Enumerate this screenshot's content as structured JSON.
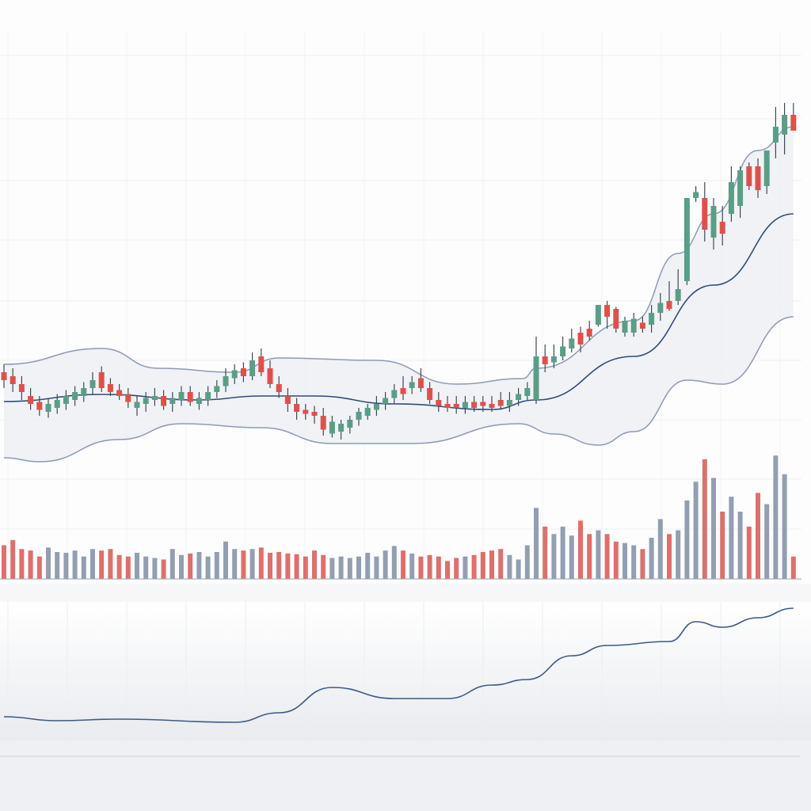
{
  "chart_data": [
    {
      "type": "candlestick",
      "title": "",
      "xlabel": "",
      "ylabel": "",
      "ylim": [
        0,
        100
      ],
      "grid": true,
      "colors": {
        "up": "#5a9e86",
        "down": "#e0504a",
        "band_line": "#8b9ab5",
        "middle_line": "#2f4d78",
        "band_fill": "#eef0f4"
      },
      "candles": [
        [
          26,
          28,
          22,
          24
        ],
        [
          25,
          27,
          21,
          23
        ],
        [
          23,
          25,
          19,
          21
        ],
        [
          20,
          22,
          16.5,
          18
        ],
        [
          18.5,
          20,
          15,
          16.5
        ],
        [
          16,
          19.5,
          14.5,
          18
        ],
        [
          17,
          20.5,
          15.5,
          19
        ],
        [
          18,
          21.5,
          16.5,
          20
        ],
        [
          19,
          22.5,
          17.5,
          21
        ],
        [
          20,
          23.5,
          18.5,
          22
        ],
        [
          22,
          26,
          20.5,
          24
        ],
        [
          26,
          27.5,
          21,
          22
        ],
        [
          23,
          24.5,
          20,
          21
        ],
        [
          21.5,
          23,
          19,
          20
        ],
        [
          20.5,
          22,
          17,
          18.5
        ],
        [
          17,
          20,
          15,
          18.5
        ],
        [
          18,
          21,
          16,
          19.5
        ],
        [
          19,
          22,
          17.5,
          20
        ],
        [
          20,
          21.5,
          16.5,
          17.5
        ],
        [
          18,
          21,
          16,
          19.5
        ],
        [
          19,
          22.5,
          17.5,
          21
        ],
        [
          21,
          22.5,
          17.5,
          18.5
        ],
        [
          18,
          21,
          16.5,
          19.5
        ],
        [
          19,
          22.5,
          17.5,
          21
        ],
        [
          21,
          24,
          19.5,
          22.5
        ],
        [
          22.5,
          27,
          21,
          25
        ],
        [
          24.5,
          28,
          23,
          26.5
        ],
        [
          27,
          28.5,
          23.5,
          25
        ],
        [
          25,
          31,
          24,
          29
        ],
        [
          30,
          32,
          25,
          26
        ],
        [
          27,
          29,
          22,
          23
        ],
        [
          23,
          25,
          19.5,
          21
        ],
        [
          20,
          22,
          16,
          18
        ],
        [
          18,
          19.5,
          14,
          16
        ],
        [
          16.5,
          18,
          14,
          15.5
        ],
        [
          16,
          17.5,
          13,
          15
        ],
        [
          15,
          17,
          10,
          11.5
        ],
        [
          10.5,
          15,
          9.5,
          13.5
        ],
        [
          11,
          14,
          9,
          13
        ],
        [
          12,
          15,
          10.5,
          14
        ],
        [
          14,
          17,
          12.5,
          16
        ],
        [
          15,
          18,
          14,
          17
        ],
        [
          16.5,
          20,
          15,
          18
        ],
        [
          18,
          21,
          16.5,
          19.5
        ],
        [
          19.5,
          23,
          18,
          21.5
        ],
        [
          22,
          25,
          19,
          20.5
        ],
        [
          22,
          25,
          20.5,
          23.5
        ],
        [
          24.5,
          27,
          21,
          22
        ],
        [
          22,
          23.5,
          18,
          19
        ],
        [
          19,
          21,
          16,
          17.5
        ],
        [
          18,
          20,
          16,
          17
        ],
        [
          18,
          20,
          15.5,
          17
        ],
        [
          17,
          20,
          15.5,
          18.5
        ],
        [
          18.5,
          20,
          16,
          17
        ],
        [
          18.5,
          20,
          16,
          17.5
        ],
        [
          18,
          20,
          16,
          17
        ],
        [
          19,
          21,
          16.5,
          17.5
        ],
        [
          17.5,
          21,
          16,
          19
        ],
        [
          19,
          22,
          17.5,
          20.5
        ],
        [
          20,
          23.5,
          19,
          22
        ],
        [
          19,
          35,
          18,
          30
        ],
        [
          30,
          33,
          26,
          28
        ],
        [
          28.5,
          33,
          27,
          30
        ],
        [
          30,
          35,
          29,
          32.5
        ],
        [
          32,
          37,
          31,
          34.5
        ],
        [
          36,
          37.5,
          31,
          33
        ],
        [
          37,
          39,
          34,
          35
        ],
        [
          38,
          43,
          37.5,
          43
        ],
        [
          43,
          44,
          37,
          40
        ],
        [
          42,
          42.5,
          36,
          37
        ],
        [
          36,
          40,
          35,
          39
        ],
        [
          36,
          41,
          35,
          39.5
        ],
        [
          38.5,
          40,
          36,
          37
        ],
        [
          38,
          43,
          36,
          41
        ],
        [
          41,
          46,
          39,
          43.5
        ],
        [
          44,
          49,
          41.5,
          42
        ],
        [
          44,
          52,
          43,
          47
        ],
        [
          49,
          70,
          48,
          70
        ],
        [
          70,
          73,
          69,
          71.5
        ],
        [
          70,
          74,
          59,
          62
        ],
        [
          60,
          70,
          57,
          68
        ],
        [
          64,
          68,
          58,
          61
        ],
        [
          66,
          78,
          64,
          74
        ],
        [
          68,
          78,
          65,
          77
        ],
        [
          78,
          79,
          72,
          73
        ],
        [
          78,
          80,
          70,
          72
        ],
        [
          73,
          82,
          71,
          82
        ],
        [
          84,
          93,
          80,
          88
        ],
        [
          86,
          94,
          81,
          91
        ],
        [
          91,
          94,
          87,
          87
        ]
      ],
      "bands": {
        "upper": [
          [
            0,
            28
          ],
          [
            11,
            32
          ],
          [
            17.4,
            27
          ],
          [
            26,
            26
          ],
          [
            31,
            29.6
          ],
          [
            42,
            29
          ],
          [
            51,
            23
          ],
          [
            58.5,
            24.4
          ],
          [
            60,
            27
          ],
          [
            71,
            39
          ],
          [
            76,
            56
          ],
          [
            80,
            66
          ],
          [
            85,
            82
          ],
          [
            89,
            88
          ]
        ],
        "middle": [
          [
            0,
            18.6
          ],
          [
            11,
            20.4
          ],
          [
            22,
            19
          ],
          [
            29,
            20
          ],
          [
            35,
            20
          ],
          [
            44,
            18
          ],
          [
            55,
            16.6
          ],
          [
            60,
            19
          ],
          [
            71,
            30
          ],
          [
            80,
            48
          ],
          [
            89,
            66
          ]
        ],
        "lower": [
          [
            0,
            4.4
          ],
          [
            4,
            3.4
          ],
          [
            13,
            9
          ],
          [
            20,
            13
          ],
          [
            29,
            12
          ],
          [
            37,
            8
          ],
          [
            46,
            8
          ],
          [
            58,
            13
          ],
          [
            62,
            10.4
          ],
          [
            67,
            7.6
          ],
          [
            71,
            11
          ],
          [
            77,
            24
          ],
          [
            81,
            23
          ],
          [
            89,
            40
          ]
        ]
      }
    },
    {
      "type": "bar",
      "title": "",
      "ylabel": "",
      "ylim": [
        0,
        180
      ],
      "colors": {
        "up": "#8795a8",
        "down": "#d9605c"
      },
      "values": [
        45,
        52,
        40,
        38,
        30,
        42,
        36,
        35,
        38,
        30,
        40,
        38,
        40,
        32,
        30,
        35,
        30,
        28,
        26,
        40,
        32,
        34,
        36,
        30,
        36,
        50,
        40,
        38,
        40,
        42,
        35,
        36,
        34,
        33,
        30,
        38,
        32,
        28,
        30,
        28,
        30,
        35,
        30,
        38,
        44,
        38,
        34,
        30,
        32,
        30,
        24,
        28,
        30,
        32,
        36,
        38,
        40,
        32,
        26,
        45,
        95,
        70,
        60,
        70,
        58,
        78,
        60,
        65,
        60,
        50,
        48,
        45,
        40,
        55,
        80,
        60,
        65,
        105,
        130,
        160,
        135,
        90,
        110,
        90,
        70,
        115,
        100,
        165,
        140,
        30
      ]
    },
    {
      "type": "line",
      "title": "",
      "ylabel": "",
      "ylim": [
        0,
        175
      ],
      "colors": {
        "line": "#3b5a85"
      },
      "points": [
        [
          0,
          30
        ],
        [
          6,
          25
        ],
        [
          13,
          27
        ],
        [
          26,
          23
        ],
        [
          31,
          35
        ],
        [
          37,
          67
        ],
        [
          44,
          53
        ],
        [
          50,
          53
        ],
        [
          55,
          70
        ],
        [
          59,
          77
        ],
        [
          64,
          107
        ],
        [
          68,
          120
        ],
        [
          75,
          125
        ],
        [
          78,
          150
        ],
        [
          81,
          143
        ],
        [
          85,
          155
        ],
        [
          89,
          167
        ]
      ]
    }
  ]
}
